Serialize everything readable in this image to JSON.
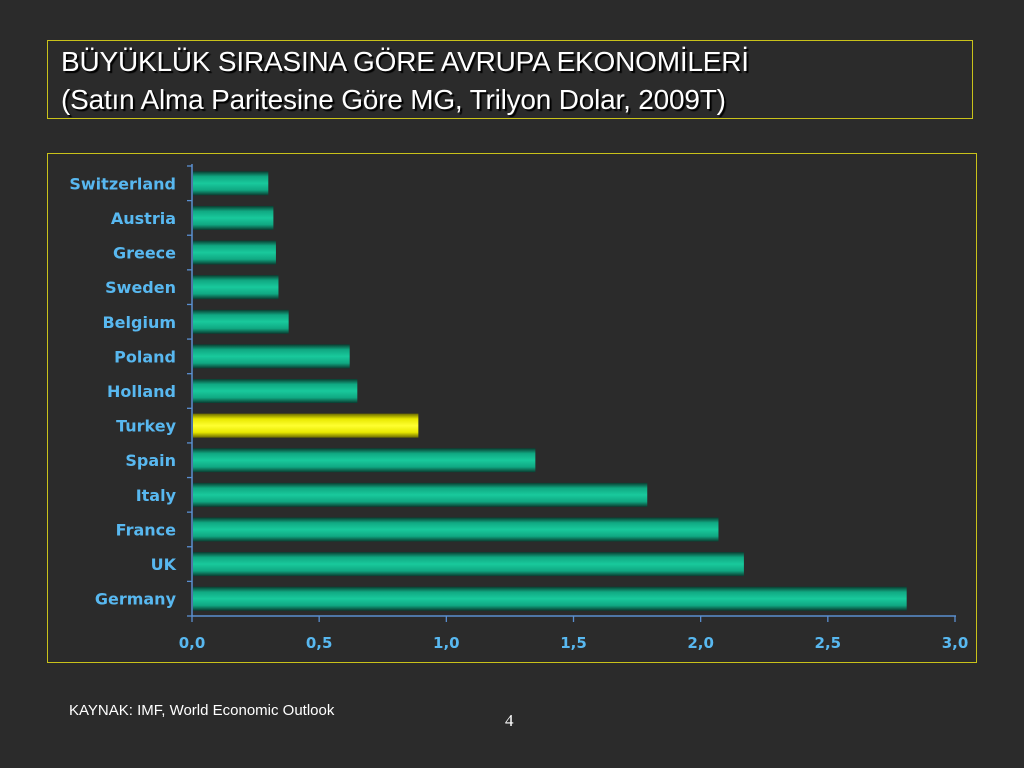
{
  "slide": {
    "title_line1": "BÜYÜKLÜK SIRASINA GÖRE AVRUPA EKONOMİLERİ",
    "title_line2": "(Satın Alma Paritesine Göre MG, Trilyon Dolar, 2009T)",
    "source": "KAYNAK: IMF, World Economic Outlook",
    "page_number": "4"
  },
  "colors": {
    "background": "#2b2b2b",
    "border": "#c9c21a",
    "bar": "#10b890",
    "highlight_bar": "#ffff00",
    "label": "#58b8f0",
    "axis": "#5a8fd0"
  },
  "chart_data": {
    "type": "bar",
    "orientation": "horizontal",
    "categories": [
      "Switzerland",
      "Austria",
      "Greece",
      "Sweden",
      "Belgium",
      "Poland",
      "Holland",
      "Turkey",
      "Spain",
      "Italy",
      "France",
      "UK",
      "Germany"
    ],
    "values": [
      0.3,
      0.32,
      0.33,
      0.34,
      0.38,
      0.62,
      0.65,
      0.89,
      1.35,
      1.79,
      2.07,
      2.17,
      2.81
    ],
    "highlight": "Turkey",
    "xlim": [
      0,
      3.0
    ],
    "xticks": [
      "0,0",
      "0,5",
      "1,0",
      "1,5",
      "2,0",
      "2,5",
      "3,0"
    ],
    "xtick_values": [
      0,
      0.5,
      1.0,
      1.5,
      2.0,
      2.5,
      3.0
    ],
    "grid": false,
    "legend": false
  }
}
